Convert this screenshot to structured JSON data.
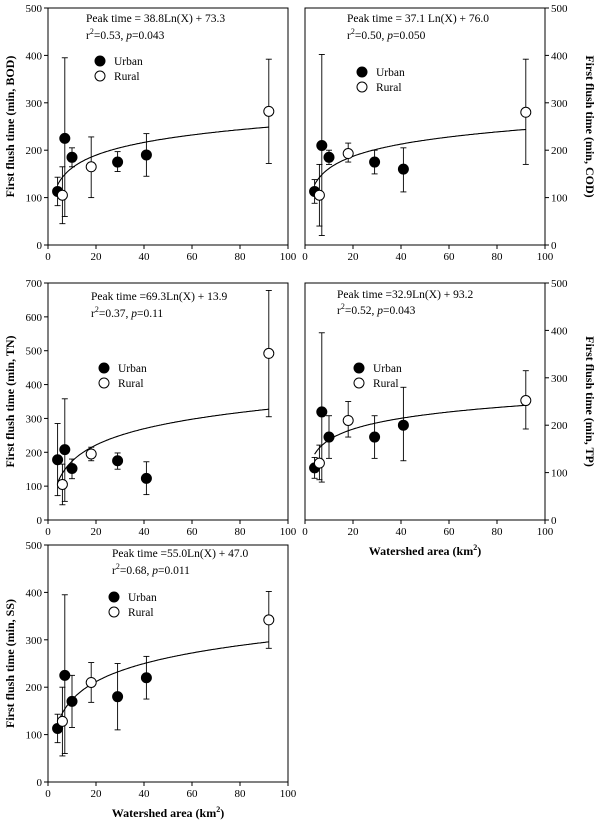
{
  "chart_data": [
    {
      "type": "scatter",
      "id": "bod",
      "ylabel": "First flush time (min, BOD)",
      "ylabel_side": "left",
      "xlabel": "",
      "xlim": [
        0,
        100
      ],
      "ylim": [
        0,
        500
      ],
      "xticks": [
        0,
        20,
        40,
        60,
        80,
        100
      ],
      "yticks": [
        0,
        100,
        200,
        300,
        400,
        500
      ],
      "equation": "Peak time = 38.8Ln(X) + 73.3",
      "stats": "r²=0.53, p=0.043",
      "stats_parts": [
        "r",
        "2",
        "=0.53, ",
        "p",
        "=0.043"
      ],
      "fit": {
        "a": 38.8,
        "b": 73.3
      },
      "legend": [
        "Urban",
        "Rural"
      ],
      "series": [
        {
          "name": "Urban",
          "points": [
            [
              4,
              113,
              83,
              143
            ],
            [
              7,
              225,
              60,
              395
            ],
            [
              10,
              185,
              165,
              205
            ],
            [
              29,
              175,
              155,
              197
            ],
            [
              41,
              190,
              145,
              235
            ]
          ]
        },
        {
          "name": "Rural",
          "points": [
            [
              6,
              105,
              45,
              165
            ],
            [
              18,
              165,
              100,
              228
            ],
            [
              92,
              282,
              172,
              392
            ]
          ]
        }
      ]
    },
    {
      "type": "scatter",
      "id": "cod",
      "ylabel": "First flush time (min, COD)",
      "ylabel_side": "right",
      "xlabel": "",
      "xlim": [
        0,
        100
      ],
      "ylim": [
        0,
        500
      ],
      "xticks": [
        0,
        20,
        40,
        60,
        80,
        100
      ],
      "yticks": [
        0,
        100,
        200,
        300,
        400,
        500
      ],
      "equation": "Peak time = 37.1 Ln(X) + 76.0",
      "stats": "r²=0.50, p=0.050",
      "stats_parts": [
        "r",
        "2",
        "=0.50, ",
        "p",
        "=0.050"
      ],
      "fit": {
        "a": 37.1,
        "b": 76.0
      },
      "legend": [
        "Urban",
        "Rural"
      ],
      "series": [
        {
          "name": "Urban",
          "points": [
            [
              4,
              113,
              88,
              138
            ],
            [
              7,
              210,
              20,
              402
            ],
            [
              10,
              185,
              170,
              200
            ],
            [
              29,
              175,
              150,
              200
            ],
            [
              41,
              160,
              112,
              205
            ]
          ]
        },
        {
          "name": "Rural",
          "points": [
            [
              6,
              105,
              40,
              170
            ],
            [
              18,
              193,
              175,
              215
            ],
            [
              92,
              280,
              170,
              392
            ]
          ]
        }
      ]
    },
    {
      "type": "scatter",
      "id": "tn",
      "ylabel": "First flush time (min, TN)",
      "ylabel_side": "left",
      "xlabel": "",
      "xlim": [
        0,
        100
      ],
      "ylim": [
        0,
        700
      ],
      "xticks": [
        0,
        20,
        40,
        60,
        80,
        100
      ],
      "yticks": [
        0,
        100,
        200,
        300,
        400,
        500,
        600,
        700
      ],
      "equation": "Peak time =69.3Ln(X) + 13.9",
      "stats": "r²=0.37, p=0.11",
      "stats_parts": [
        "r",
        "2",
        "=0.37, ",
        "p",
        "=0.11"
      ],
      "fit": {
        "a": 69.3,
        "b": 13.9
      },
      "legend": [
        "Urban",
        "Rural"
      ],
      "series": [
        {
          "name": "Urban",
          "points": [
            [
              4,
              178,
              72,
              285
            ],
            [
              7,
              208,
              55,
              358
            ],
            [
              10,
              152,
              122,
              180
            ],
            [
              29,
              175,
              150,
              198
            ],
            [
              41,
              123,
              75,
              172
            ]
          ]
        },
        {
          "name": "Rural",
          "points": [
            [
              6,
              105,
              45,
              165
            ],
            [
              18,
              195,
              175,
              215
            ],
            [
              92,
              492,
              305,
              678
            ]
          ]
        }
      ]
    },
    {
      "type": "scatter",
      "id": "tp",
      "ylabel": "First flush time (min, TP)",
      "ylabel_side": "right",
      "xlabel": "Watershed area (km²)",
      "xlabel_parts": [
        "Watershed area (km",
        "2",
        ")"
      ],
      "xlim": [
        0,
        100
      ],
      "ylim": [
        0,
        500
      ],
      "xticks": [
        0,
        20,
        40,
        60,
        80,
        100
      ],
      "yticks": [
        0,
        100,
        200,
        300,
        400,
        500
      ],
      "equation": "Peak time =32.9Ln(X) + 93.2",
      "stats": "r²=0.52, p=0.043",
      "stats_parts": [
        "r",
        "2",
        "=0.52, ",
        "p",
        "=0.043"
      ],
      "fit": {
        "a": 32.9,
        "b": 93.2
      },
      "legend": [
        "Urban",
        "Rural"
      ],
      "series": [
        {
          "name": "Urban",
          "points": [
            [
              4,
              110,
              88,
              132
            ],
            [
              7,
              228,
              80,
              395
            ],
            [
              10,
              175,
              130,
              220
            ],
            [
              29,
              175,
              130,
              220
            ],
            [
              41,
              200,
              125,
              280
            ]
          ]
        },
        {
          "name": "Rural",
          "points": [
            [
              6,
              120,
              85,
              158
            ],
            [
              18,
              210,
              175,
              250
            ],
            [
              92,
              252,
              192,
              315
            ]
          ]
        }
      ]
    },
    {
      "type": "scatter",
      "id": "ss",
      "ylabel": "First flush time (min, SS)",
      "ylabel_side": "left",
      "xlabel": "Watershed area (km²)",
      "xlabel_parts": [
        "Watershed area (km",
        "2",
        ")"
      ],
      "xlim": [
        0,
        100
      ],
      "ylim": [
        0,
        500
      ],
      "xticks": [
        0,
        20,
        40,
        60,
        80,
        100
      ],
      "yticks": [
        0,
        100,
        200,
        300,
        400,
        500
      ],
      "equation": "Peak time =55.0Ln(X) + 47.0",
      "stats": "r²=0.68, p=0.011",
      "stats_parts": [
        "r",
        "2",
        "=0.68, ",
        "p",
        "=0.011"
      ],
      "fit": {
        "a": 55.0,
        "b": 47.0
      },
      "legend": [
        "Urban",
        "Rural"
      ],
      "series": [
        {
          "name": "Urban",
          "points": [
            [
              4,
              113,
              83,
              143
            ],
            [
              7,
              225,
              60,
              395
            ],
            [
              10,
              170,
              115,
              225
            ],
            [
              29,
              180,
              110,
              250
            ],
            [
              41,
              220,
              175,
              265
            ]
          ]
        },
        {
          "name": "Rural",
          "points": [
            [
              6,
              128,
              55,
              200
            ],
            [
              18,
              210,
              168,
              252
            ],
            [
              92,
              342,
              282,
              402
            ]
          ]
        }
      ]
    }
  ]
}
